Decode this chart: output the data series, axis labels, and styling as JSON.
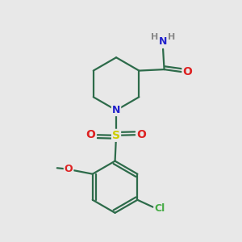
{
  "background_color": "#e8e8e8",
  "bond_color": "#2d6b4a",
  "bond_width": 1.6,
  "atom_colors": {
    "N": "#2222cc",
    "O": "#dd2222",
    "S": "#cccc00",
    "Cl": "#44aa44",
    "H": "#888888",
    "C": "#2d6b4a"
  },
  "font_size_atom": 9,
  "figsize": [
    3.0,
    3.0
  ],
  "dpi": 100,
  "xlim": [
    0,
    10
  ],
  "ylim": [
    0,
    10
  ]
}
